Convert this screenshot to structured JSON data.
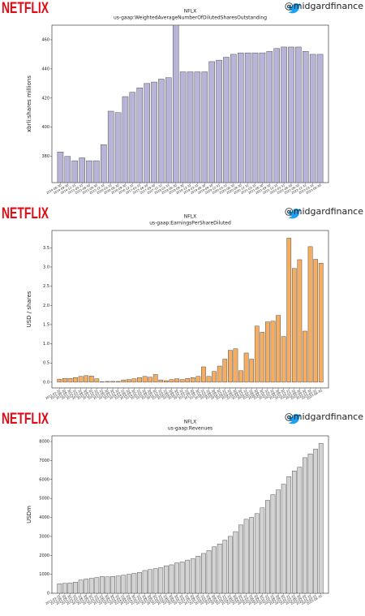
{
  "chart_data": [
    {
      "type": "bar",
      "logo": "NETFLIX",
      "handle": "@midgardfinance",
      "title": "NFLX",
      "subtitle": "us-gaap:WeightedAverageNumberOfDilutedSharesOutstanding",
      "y_label": "xbrli:shares millions",
      "color": "#b8b4d8",
      "categories": [
        "2014-06-30",
        "2014-09-30",
        "2014-12-31",
        "2015-03-31",
        "2015-06-30",
        "2015-09-30",
        "2015-12-31",
        "2016-03-31",
        "2016-06-30",
        "2016-09-30",
        "2016-12-31",
        "2017-03-31",
        "2017-06-30",
        "2017-09-30",
        "2017-12-31",
        "2018-03-31",
        "2018-06-30",
        "2018-09-30",
        "2018-12-31",
        "2019-03-31",
        "2019-06-30",
        "2019-09-30",
        "2019-12-31",
        "2020-03-31",
        "2020-06-30",
        "2020-09-30",
        "2020-12-31",
        "2021-03-31",
        "2021-06-30",
        "2021-09-30",
        "2021-12-31",
        "2022-03-31",
        "2022-06-30",
        "2022-09-30",
        "2022-12-31",
        "2023-03-31",
        "2023-06-30"
      ],
      "values": [
        383,
        380,
        377,
        379,
        377,
        377,
        388,
        411,
        410,
        421,
        424,
        427,
        430,
        431,
        433,
        434,
        470,
        438,
        438,
        438,
        438,
        445,
        446,
        448,
        450,
        451,
        451,
        451,
        451,
        452,
        454,
        455,
        455,
        455,
        452,
        450,
        450
      ],
      "ylim": [
        362,
        470
      ],
      "yticks": [
        380,
        400,
        420,
        440,
        460
      ]
    },
    {
      "type": "bar",
      "logo": "NETFLIX",
      "handle": "@midgardfinance",
      "title": "NFLX",
      "subtitle": "us-gaap:EarningsPerShareDiluted",
      "y_label": "USD / shares",
      "color": "#f5ad62",
      "categories": [
        "2011-03-31",
        "2011-06-30",
        "2011-09-30",
        "2011-12-31",
        "2012-03-31",
        "2012-06-30",
        "2012-09-30",
        "2012-12-31",
        "2013-03-31",
        "2013-06-30",
        "2013-09-30",
        "2013-12-31",
        "2014-03-31",
        "2014-06-30",
        "2014-09-30",
        "2014-12-31",
        "2015-03-31",
        "2015-06-30",
        "2015-09-30",
        "2015-12-31",
        "2016-03-31",
        "2016-06-30",
        "2016-09-30",
        "2016-12-31",
        "2017-03-31",
        "2017-06-30",
        "2017-09-30",
        "2017-12-31",
        "2018-03-31",
        "2018-06-30",
        "2018-09-30",
        "2018-12-31",
        "2019-03-31",
        "2019-06-30",
        "2019-09-30",
        "2019-12-31",
        "2020-03-31",
        "2020-06-30",
        "2020-09-30",
        "2020-12-31",
        "2021-03-31",
        "2021-06-30",
        "2021-09-30",
        "2021-12-31",
        "2022-03-31",
        "2022-06-30",
        "2022-09-30",
        "2022-12-31",
        "2023-03-31",
        "2023-06-30"
      ],
      "values": [
        0.08,
        0.1,
        0.1,
        0.12,
        0.15,
        0.17,
        0.16,
        0.09,
        0.01,
        0.02,
        0.02,
        0.02,
        0.06,
        0.07,
        0.09,
        0.12,
        0.15,
        0.13,
        0.2,
        0.06,
        0.04,
        0.07,
        0.09,
        0.07,
        0.1,
        0.12,
        0.15,
        0.4,
        0.15,
        0.28,
        0.42,
        0.6,
        0.83,
        0.87,
        0.3,
        0.76,
        0.6,
        1.46,
        1.3,
        1.57,
        1.59,
        1.74,
        1.19,
        3.75,
        2.96,
        3.19,
        1.33,
        3.53,
        3.2,
        3.1
      ],
      "ylim": [
        -0.15,
        3.95
      ],
      "yticks": [
        {
          "value": 0,
          "label": "0.0"
        },
        0.5,
        {
          "value": 1,
          "label": "1.0"
        },
        1.5,
        {
          "value": 2,
          "label": "2.0"
        },
        2.5,
        {
          "value": 3,
          "label": "3.0"
        },
        3.5
      ]
    },
    {
      "type": "bar",
      "logo": "NETFLIX",
      "handle": "@midgardfinance",
      "title": "NFLX",
      "subtitle": "us-gaap:Revenues",
      "y_label": "USDm",
      "color": "#d3d3d3",
      "categories": [
        "2011-03-31",
        "2011-06-30",
        "2011-09-30",
        "2011-12-31",
        "2012-03-31",
        "2012-06-30",
        "2012-09-30",
        "2012-12-31",
        "2013-03-31",
        "2013-06-30",
        "2013-09-30",
        "2013-12-31",
        "2014-03-31",
        "2014-06-30",
        "2014-09-30",
        "2014-12-31",
        "2015-03-31",
        "2015-06-30",
        "2015-09-30",
        "2015-12-31",
        "2016-03-31",
        "2016-06-30",
        "2016-09-30",
        "2016-12-31",
        "2017-03-31",
        "2017-06-30",
        "2017-09-30",
        "2017-12-31",
        "2018-03-31",
        "2018-06-30",
        "2018-09-30",
        "2018-12-31",
        "2019-03-31",
        "2019-06-30",
        "2019-09-30",
        "2019-12-31",
        "2020-03-31",
        "2020-06-30",
        "2020-09-30",
        "2020-12-31",
        "2021-03-31",
        "2021-06-30",
        "2021-09-30",
        "2021-12-31",
        "2022-03-31",
        "2022-06-30",
        "2022-09-30",
        "2022-12-31",
        "2023-03-31",
        "2023-06-30"
      ],
      "values": [
        500,
        520,
        550,
        590,
        700,
        750,
        790,
        830,
        880,
        870,
        890,
        910,
        950,
        1000,
        1050,
        1100,
        1200,
        1250,
        1300,
        1350,
        1450,
        1500,
        1600,
        1650,
        1750,
        1820,
        1960,
        2100,
        2250,
        2450,
        2600,
        2800,
        3000,
        3250,
        3600,
        3900,
        4000,
        4200,
        4500,
        4900,
        5200,
        5450,
        5750,
        6150,
        6450,
        6650,
        7150,
        7350,
        7600,
        7900
      ],
      "ylim": [
        0,
        8300
      ],
      "yticks": [
        0,
        1000,
        2000,
        3000,
        4000,
        5000,
        6000,
        7000,
        8000
      ]
    }
  ]
}
